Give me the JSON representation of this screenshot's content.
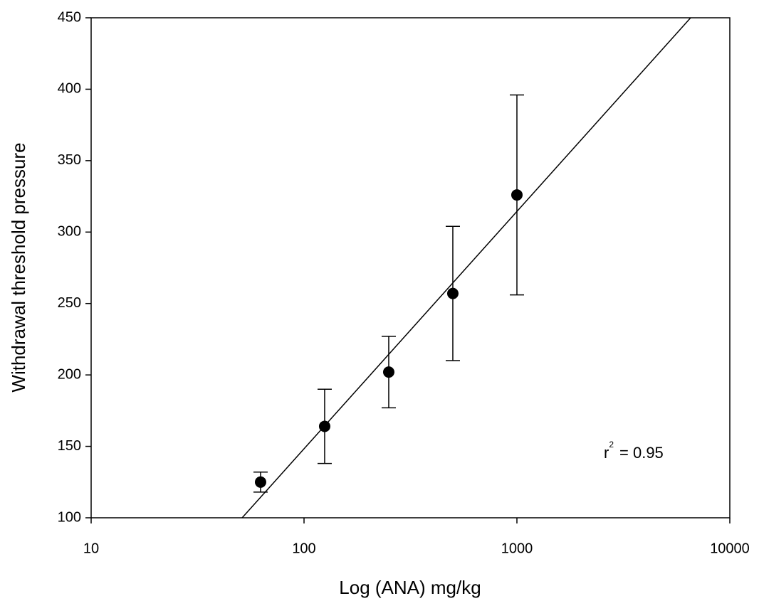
{
  "chart_data": {
    "type": "scatter",
    "x_label": "Log (ANA) mg/kg",
    "y_label": "Withdrawal threshold pressure",
    "xscale": "log",
    "xlim": [
      10,
      10000
    ],
    "xticks": [
      10,
      100,
      1000,
      10000
    ],
    "ylim": [
      100,
      450
    ],
    "yticks": [
      100,
      150,
      200,
      250,
      300,
      350,
      400,
      450
    ],
    "series": [
      {
        "color": "#000000",
        "x": [
          62.5,
          125,
          250,
          500,
          1000
        ],
        "values": [
          125,
          164,
          202,
          257,
          326
        ],
        "errors": [
          7,
          26,
          25,
          47,
          70
        ]
      }
    ],
    "fit_line": {
      "color": "#000000",
      "x": [
        51.2,
        6546
      ],
      "values": [
        100,
        450
      ]
    },
    "annotation": {
      "base": "r",
      "superscript": "2",
      "text": "= 0.95"
    }
  }
}
